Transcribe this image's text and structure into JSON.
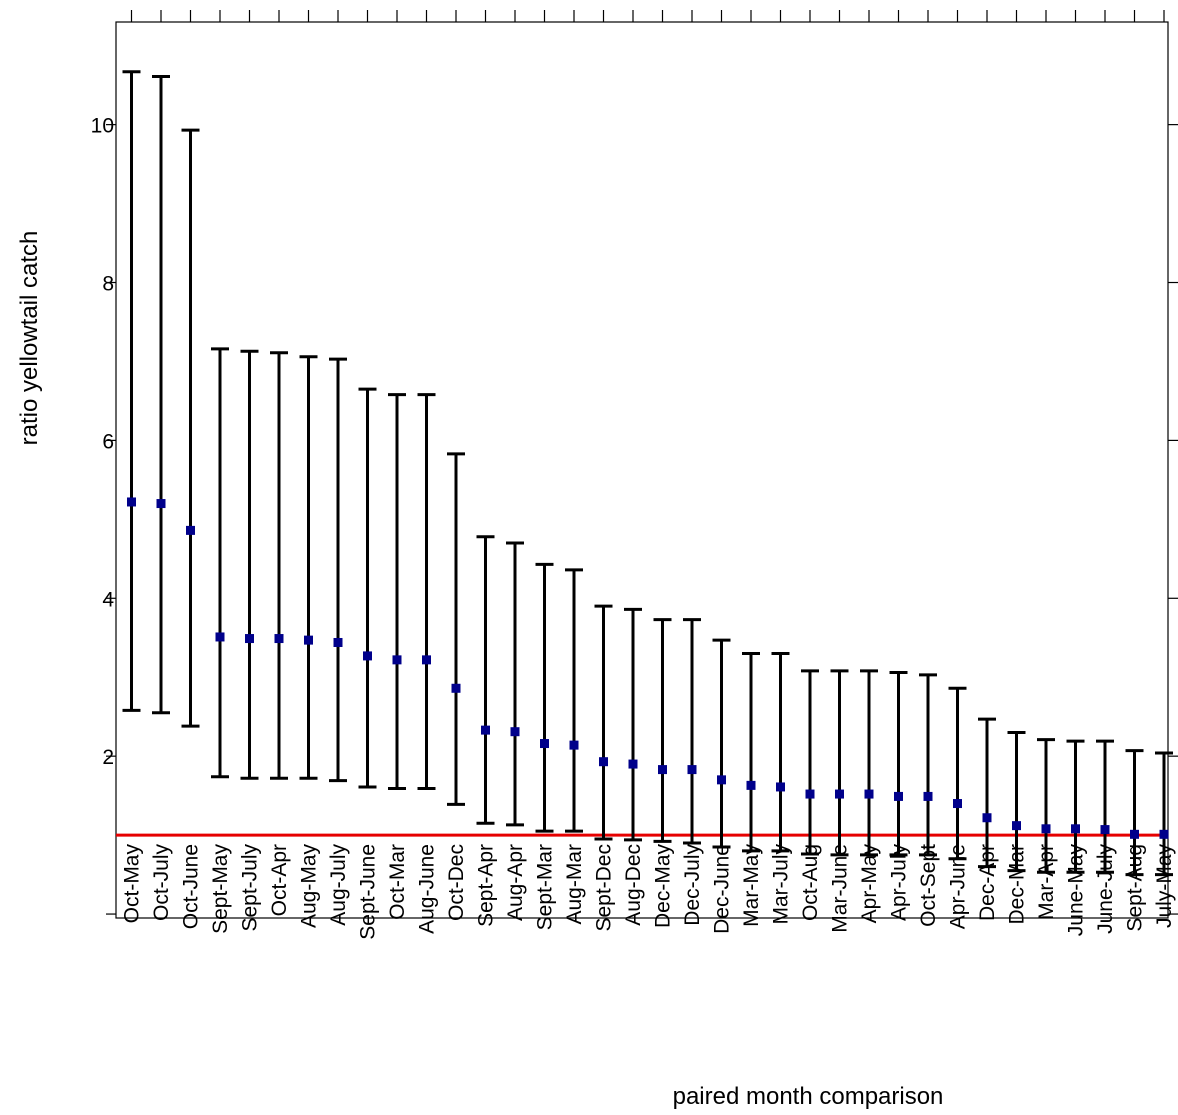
{
  "chart_data": {
    "type": "errorbar",
    "title": "",
    "xlabel": "paired month comparison",
    "ylabel": "ratio yellowtail catch",
    "ylim": [
      -0.05,
      11.3
    ],
    "yticks": [
      10,
      8,
      6,
      4,
      2
    ],
    "reference_line": {
      "y": 1.0,
      "color": "#e60000"
    },
    "grid": false,
    "legend": "none",
    "colors": {
      "point": "#00008b",
      "errorbar": "#000000",
      "axis": "#000000"
    },
    "categories": [
      "Oct-May",
      "Oct-July",
      "Oct-June",
      "Sept-May",
      "Sept-July",
      "Oct-Apr",
      "Aug-May",
      "Aug-July",
      "Sept-June",
      "Oct-Mar",
      "Aug-June",
      "Oct-Dec",
      "Sept-Apr",
      "Aug-Apr",
      "Sept-Mar",
      "Aug-Mar",
      "Sept-Dec",
      "Aug-Dec",
      "Dec-May",
      "Dec-July",
      "Dec-June",
      "Mar-May",
      "Mar-July",
      "Oct-Aug",
      "Mar-June",
      "Apr-May",
      "Apr-July",
      "Oct-Sept",
      "Apr-June",
      "Dec-Apr",
      "Dec-Mar",
      "Mar-Apr",
      "June-May",
      "June-July",
      "Sept-Aug",
      "July-May"
    ],
    "estimate": [
      5.22,
      5.2,
      4.86,
      3.51,
      3.49,
      3.49,
      3.47,
      3.44,
      3.27,
      3.22,
      3.22,
      2.86,
      2.33,
      2.31,
      2.16,
      2.14,
      1.93,
      1.9,
      1.83,
      1.83,
      1.7,
      1.63,
      1.61,
      1.52,
      1.52,
      1.52,
      1.49,
      1.49,
      1.4,
      1.22,
      1.12,
      1.08,
      1.08,
      1.07,
      1.01,
      1.01
    ],
    "lower": [
      2.58,
      2.55,
      2.38,
      1.74,
      1.72,
      1.72,
      1.72,
      1.69,
      1.61,
      1.59,
      1.59,
      1.39,
      1.15,
      1.13,
      1.05,
      1.05,
      0.95,
      0.94,
      0.92,
      0.9,
      0.85,
      0.8,
      0.8,
      0.76,
      0.75,
      0.75,
      0.75,
      0.75,
      0.7,
      0.6,
      0.55,
      0.53,
      0.53,
      0.53,
      0.5,
      0.5
    ],
    "upper": [
      10.67,
      10.61,
      9.93,
      7.16,
      7.13,
      7.11,
      7.06,
      7.03,
      6.65,
      6.58,
      6.58,
      5.83,
      4.78,
      4.7,
      4.43,
      4.36,
      3.9,
      3.86,
      3.73,
      3.73,
      3.47,
      3.3,
      3.3,
      3.08,
      3.08,
      3.08,
      3.06,
      3.03,
      2.86,
      2.47,
      2.3,
      2.21,
      2.19,
      2.19,
      2.07,
      2.04
    ]
  }
}
